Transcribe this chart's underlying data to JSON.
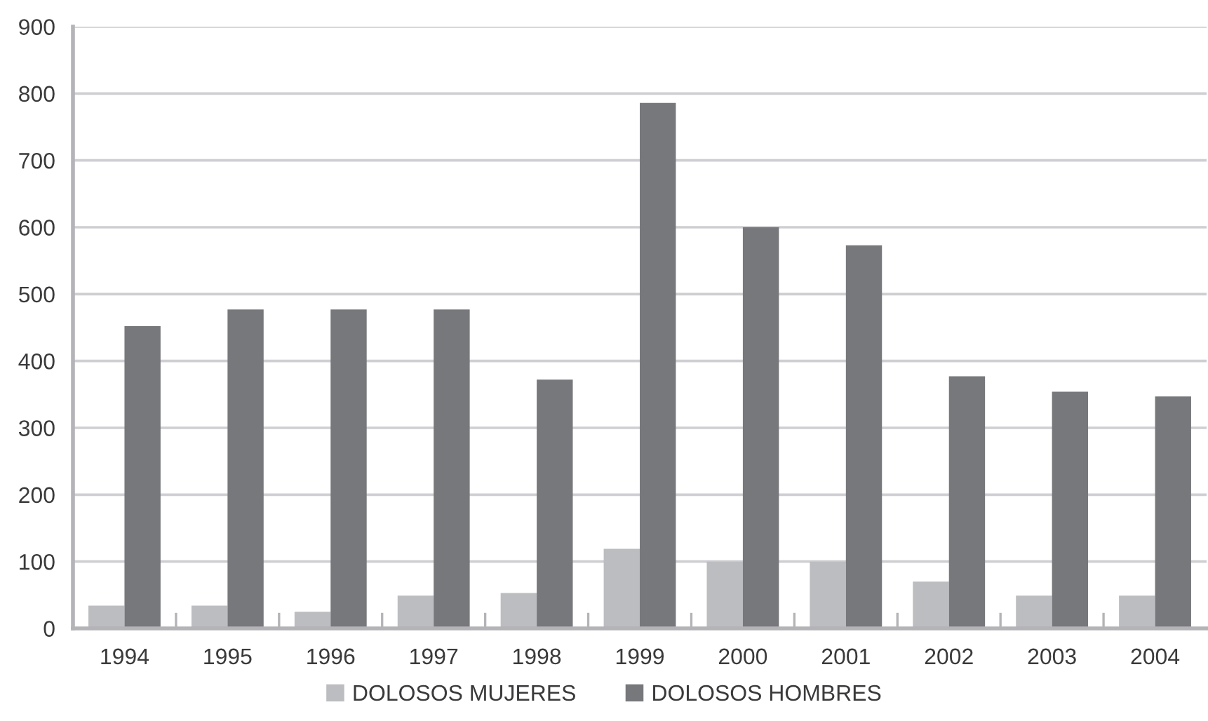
{
  "chart_data": {
    "type": "bar",
    "categories": [
      "1994",
      "1995",
      "1996",
      "1997",
      "1998",
      "1999",
      "2000",
      "2001",
      "2002",
      "2003",
      "2004"
    ],
    "series": [
      {
        "name": "DOLOSOS MUJERES",
        "color": "#bcbdc0",
        "values": [
          34,
          34,
          25,
          49,
          53,
          119,
          100,
          100,
          70,
          49,
          49
        ]
      },
      {
        "name": "DOLOSOS HOMBRES",
        "color": "#77787b",
        "values": [
          452,
          477,
          477,
          477,
          372,
          786,
          600,
          573,
          377,
          354,
          347
        ]
      }
    ],
    "ylim": [
      0,
      900
    ],
    "yticks": [
      0,
      100,
      200,
      300,
      400,
      500,
      600,
      700,
      800,
      900
    ],
    "grid": "y",
    "legend": "bottom"
  }
}
